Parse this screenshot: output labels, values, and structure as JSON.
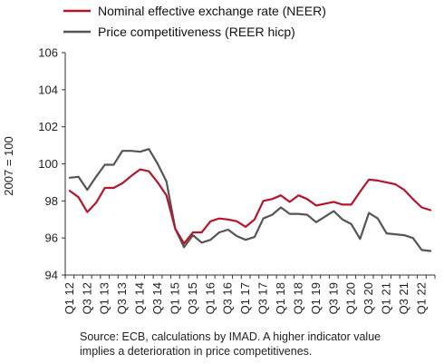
{
  "chart_data": {
    "type": "line",
    "ylabel": "2007 = 100",
    "xlabel": "",
    "ylim": [
      94,
      106
    ],
    "yticks": [
      94,
      96,
      98,
      100,
      102,
      104,
      106
    ],
    "grid": false,
    "legend_position": "top-left",
    "x": [
      "Q1 12",
      "Q2 12",
      "Q3 12",
      "Q4 12",
      "Q1 13",
      "Q2 13",
      "Q3 13",
      "Q4 13",
      "Q1 14",
      "Q2 14",
      "Q3 14",
      "Q4 14",
      "Q1 15",
      "Q2 15",
      "Q3 15",
      "Q4 15",
      "Q1 16",
      "Q2 16",
      "Q3 16",
      "Q4 16",
      "Q1 17",
      "Q2 17",
      "Q3 17",
      "Q4 17",
      "Q1 18",
      "Q2 18",
      "Q3 18",
      "Q4 18",
      "Q1 19",
      "Q2 19",
      "Q3 19",
      "Q4 19",
      "Q1 20",
      "Q2 20",
      "Q3 20",
      "Q4 20",
      "Q1 21",
      "Q2 21",
      "Q3 21",
      "Q4 21",
      "Q1 22",
      "Q2 22"
    ],
    "xtick_labels": [
      "Q1 12",
      "Q3 12",
      "Q1 13",
      "Q3 13",
      "Q1 14",
      "Q3 14",
      "Q1 15",
      "Q3 15",
      "Q1 16",
      "Q3 16",
      "Q1 17",
      "Q3 17",
      "Q1 18",
      "Q3 18",
      "Q1 19",
      "Q3 19",
      "Q1 20",
      "Q3 20",
      "Q1 21",
      "Q3 21",
      "Q1 22"
    ],
    "series": [
      {
        "name": "Nominal effective exchange rate (NEER)",
        "color": "#b5152b",
        "values": [
          98.55,
          98.2,
          97.4,
          97.9,
          98.7,
          98.7,
          98.95,
          99.35,
          99.7,
          99.6,
          99.0,
          98.3,
          96.5,
          95.7,
          96.3,
          96.3,
          96.9,
          97.05,
          97.0,
          96.9,
          96.6,
          97.0,
          98.0,
          98.1,
          98.3,
          97.95,
          98.3,
          98.1,
          97.75,
          97.85,
          97.95,
          97.8,
          97.8,
          98.5,
          99.15,
          99.1,
          99.0,
          98.9,
          98.6,
          98.1,
          97.65,
          97.5
        ]
      },
      {
        "name": "Price competitiveness (REER hicp)",
        "color": "#555555",
        "values": [
          99.25,
          99.3,
          98.6,
          99.3,
          99.95,
          99.95,
          100.7,
          100.7,
          100.65,
          100.8,
          100.0,
          99.05,
          96.5,
          95.5,
          96.15,
          95.75,
          95.9,
          96.3,
          96.45,
          96.1,
          95.9,
          96.05,
          97.05,
          97.25,
          97.65,
          97.3,
          97.3,
          97.25,
          96.85,
          97.15,
          97.45,
          97.0,
          96.75,
          95.95,
          97.35,
          97.05,
          96.25,
          96.2,
          96.15,
          96.0,
          95.35,
          95.3
        ]
      }
    ]
  },
  "note_lines": [
    "Source: ECB, calculations by IMAD. A higher indicator value",
    "implies a deterioration in price competitivenes."
  ]
}
